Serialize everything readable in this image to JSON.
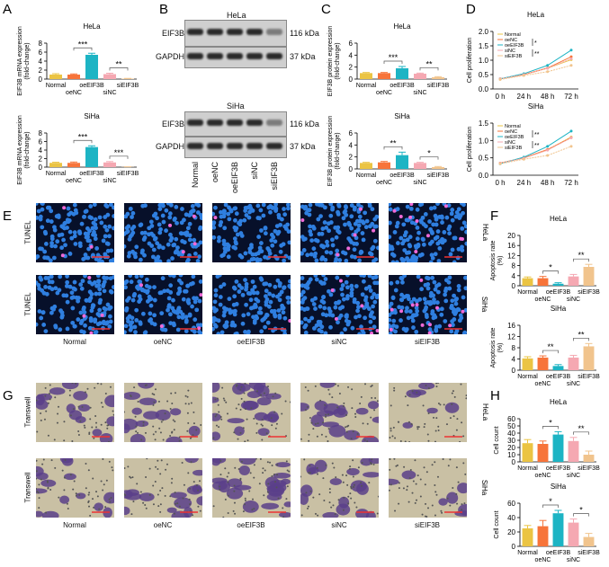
{
  "panels": {
    "A": "A",
    "B": "B",
    "C": "C",
    "D": "D",
    "E": "E",
    "F": "F",
    "G": "G",
    "H": "H"
  },
  "groups": [
    "Normal",
    "oeNC",
    "oeEIF3B",
    "siNC",
    "siEIF3B"
  ],
  "colors": {
    "Normal": "#ebc443",
    "oeNC": "#f7743a",
    "oeEIF3B": "#1db4c4",
    "siNC": "#f5a8b2",
    "siEIF3B": "#f1c48d"
  },
  "blot": {
    "hela": "HeLa",
    "siha": "SiHa",
    "eif3b": "EIF3B",
    "gapdh": "GAPDH",
    "kda116": "116 kDa",
    "kda37": "37 kDa"
  },
  "rows": {
    "tunel": "TUNEL",
    "transwell": "Transwell",
    "hela": "HeLa",
    "siha": "SiHa"
  },
  "chart_data": [
    {
      "id": "A-HeLa",
      "type": "bar",
      "title": "HeLa",
      "ylabel": "EIF3B mRNA expression (fold-change)",
      "ylim": [
        0,
        8
      ],
      "yticks": [
        0,
        2,
        4,
        6,
        8
      ],
      "categories": [
        "Normal",
        "oeNC",
        "oeEIF3B",
        "siNC",
        "siEIF3B"
      ],
      "values": [
        1.0,
        1.0,
        5.4,
        1.1,
        0.1
      ],
      "errors": [
        0.2,
        0.15,
        0.35,
        0.2,
        0.05
      ],
      "annotations": [
        {
          "between": [
            "oeNC",
            "oeEIF3B"
          ],
          "label": "***"
        },
        {
          "between": [
            "siNC",
            "siEIF3B"
          ],
          "label": "**"
        }
      ]
    },
    {
      "id": "A-SiHa",
      "type": "bar",
      "title": "SiHa",
      "ylabel": "EIF3B mRNA expression (fold-change)",
      "ylim": [
        0,
        8
      ],
      "yticks": [
        0,
        2,
        4,
        6,
        8
      ],
      "categories": [
        "Normal",
        "oeNC",
        "oeEIF3B",
        "siNC",
        "siEIF3B"
      ],
      "values": [
        1.0,
        1.0,
        4.7,
        1.1,
        0.05
      ],
      "errors": [
        0.15,
        0.2,
        0.3,
        0.2,
        0.03
      ],
      "annotations": [
        {
          "between": [
            "oeNC",
            "oeEIF3B"
          ],
          "label": "***"
        },
        {
          "between": [
            "siNC",
            "siEIF3B"
          ],
          "label": "***"
        }
      ]
    },
    {
      "id": "C-HeLa",
      "type": "bar",
      "title": "HeLa",
      "ylabel": "EIF3B protein expression (fold-change)",
      "ylim": [
        0,
        6
      ],
      "yticks": [
        0,
        2,
        4,
        6
      ],
      "categories": [
        "Normal",
        "oeNC",
        "oeEIF3B",
        "siNC",
        "siEIF3B"
      ],
      "values": [
        1.0,
        1.0,
        1.8,
        0.9,
        0.3
      ],
      "errors": [
        0.1,
        0.1,
        0.3,
        0.1,
        0.1
      ],
      "annotations": [
        {
          "between": [
            "oeNC",
            "oeEIF3B"
          ],
          "label": "***"
        },
        {
          "between": [
            "siNC",
            "siEIF3B"
          ],
          "label": "**"
        }
      ]
    },
    {
      "id": "C-SiHa",
      "type": "bar",
      "title": "SiHa",
      "ylabel": "EIF3B protein expression (fold-change)",
      "ylim": [
        0,
        6
      ],
      "yticks": [
        0,
        2,
        4,
        6
      ],
      "categories": [
        "Normal",
        "oeNC",
        "oeEIF3B",
        "siNC",
        "siEIF3B"
      ],
      "values": [
        1.0,
        1.1,
        2.3,
        1.0,
        0.3
      ],
      "errors": [
        0.1,
        0.15,
        0.5,
        0.1,
        0.1
      ],
      "annotations": [
        {
          "between": [
            "oeNC",
            "oeEIF3B"
          ],
          "label": "**"
        },
        {
          "between": [
            "siNC",
            "siEIF3B"
          ],
          "label": "*"
        }
      ]
    },
    {
      "id": "D-HeLa",
      "type": "line",
      "title": "HeLa",
      "ylabel": "Cell proliferation",
      "ylim": [
        0,
        2
      ],
      "yticks": [
        "0.0",
        "0.5",
        "1.0",
        "1.5",
        "2.0"
      ],
      "x": [
        "0 h",
        "24 h",
        "48 h",
        "72 h"
      ],
      "series": [
        {
          "name": "Normal",
          "values": [
            0.35,
            0.5,
            0.72,
            1.02
          ]
        },
        {
          "name": "oeNC",
          "values": [
            0.35,
            0.5,
            0.73,
            1.12
          ]
        },
        {
          "name": "oeEIF3B",
          "values": [
            0.35,
            0.53,
            0.82,
            1.35
          ]
        },
        {
          "name": "siNC",
          "values": [
            0.35,
            0.5,
            0.72,
            1.05
          ]
        },
        {
          "name": "siEIF3B",
          "values": [
            0.33,
            0.47,
            0.6,
            0.82
          ]
        }
      ],
      "annotations": [
        "*",
        "**"
      ]
    },
    {
      "id": "D-SiHa",
      "type": "line",
      "title": "SiHa",
      "ylabel": "Cell proliferation",
      "ylim": [
        0,
        1.5
      ],
      "yticks": [
        "0.0",
        "0.5",
        "1.0",
        "1.5"
      ],
      "x": [
        "0 h",
        "24 h",
        "48 h",
        "72 h"
      ],
      "series": [
        {
          "name": "Normal",
          "values": [
            0.35,
            0.5,
            0.73,
            1.1
          ]
        },
        {
          "name": "oeNC",
          "values": [
            0.35,
            0.5,
            0.74,
            1.08
          ]
        },
        {
          "name": "oeEIF3B",
          "values": [
            0.33,
            0.52,
            0.83,
            1.27
          ]
        },
        {
          "name": "siNC",
          "values": [
            0.35,
            0.49,
            0.72,
            1.08
          ]
        },
        {
          "name": "siEIF3B",
          "values": [
            0.33,
            0.46,
            0.57,
            0.83
          ]
        }
      ],
      "annotations": [
        "**",
        "**"
      ]
    },
    {
      "id": "F-HeLa",
      "type": "bar",
      "title": "HeLa",
      "ylabel": "Apoptosis rate (%)",
      "ylim": [
        0,
        20
      ],
      "yticks": [
        0,
        4,
        8,
        12,
        16,
        20
      ],
      "categories": [
        "Normal",
        "oeNC",
        "oeEIF3B",
        "siNC",
        "siEIF3B"
      ],
      "values": [
        3.0,
        3.0,
        0.8,
        3.7,
        7.5
      ],
      "errors": [
        0.5,
        0.7,
        0.4,
        0.8,
        1.0
      ],
      "annotations": [
        {
          "between": [
            "oeNC",
            "oeEIF3B"
          ],
          "label": "*"
        },
        {
          "between": [
            "siNC",
            "siEIF3B"
          ],
          "label": "**"
        }
      ]
    },
    {
      "id": "F-SiHa",
      "type": "bar",
      "title": "SiHa",
      "ylabel": "Apoptosis rate (%)",
      "ylim": [
        0,
        16
      ],
      "yticks": [
        0,
        4,
        8,
        12,
        16
      ],
      "categories": [
        "Normal",
        "oeNC",
        "oeEIF3B",
        "siNC",
        "siEIF3B"
      ],
      "values": [
        4.2,
        4.5,
        1.5,
        4.5,
        8.5
      ],
      "errors": [
        0.6,
        0.6,
        0.5,
        0.8,
        1.0
      ],
      "annotations": [
        {
          "between": [
            "oeNC",
            "oeEIF3B"
          ],
          "label": "**"
        },
        {
          "between": [
            "siNC",
            "siEIF3B"
          ],
          "label": "**"
        }
      ]
    },
    {
      "id": "H-HeLa",
      "type": "bar",
      "title": "HeLa",
      "ylabel": "Cell count",
      "ylim": [
        0,
        60
      ],
      "yticks": [
        0,
        10,
        20,
        30,
        40,
        50,
        60
      ],
      "categories": [
        "Normal",
        "oeNC",
        "oeEIF3B",
        "siNC",
        "siEIF3B"
      ],
      "values": [
        26,
        25,
        38,
        29,
        10
      ],
      "errors": [
        5,
        4,
        4,
        5,
        5
      ],
      "annotations": [
        {
          "between": [
            "oeNC",
            "oeEIF3B"
          ],
          "label": "*"
        },
        {
          "between": [
            "siNC",
            "siEIF3B"
          ],
          "label": "**"
        }
      ]
    },
    {
      "id": "H-SiHa",
      "type": "bar",
      "title": "SiHa",
      "ylabel": "Cell count",
      "ylim": [
        0,
        60
      ],
      "yticks": [
        0,
        20,
        40,
        60
      ],
      "categories": [
        "Normal",
        "oeNC",
        "oeEIF3B",
        "siNC",
        "siEIF3B"
      ],
      "values": [
        25,
        28,
        46,
        33,
        13
      ],
      "errors": [
        4,
        8,
        4,
        5,
        5
      ],
      "annotations": [
        {
          "between": [
            "oeNC",
            "oeEIF3B"
          ],
          "label": "*"
        },
        {
          "between": [
            "siNC",
            "siEIF3B"
          ],
          "label": "*"
        }
      ]
    }
  ]
}
